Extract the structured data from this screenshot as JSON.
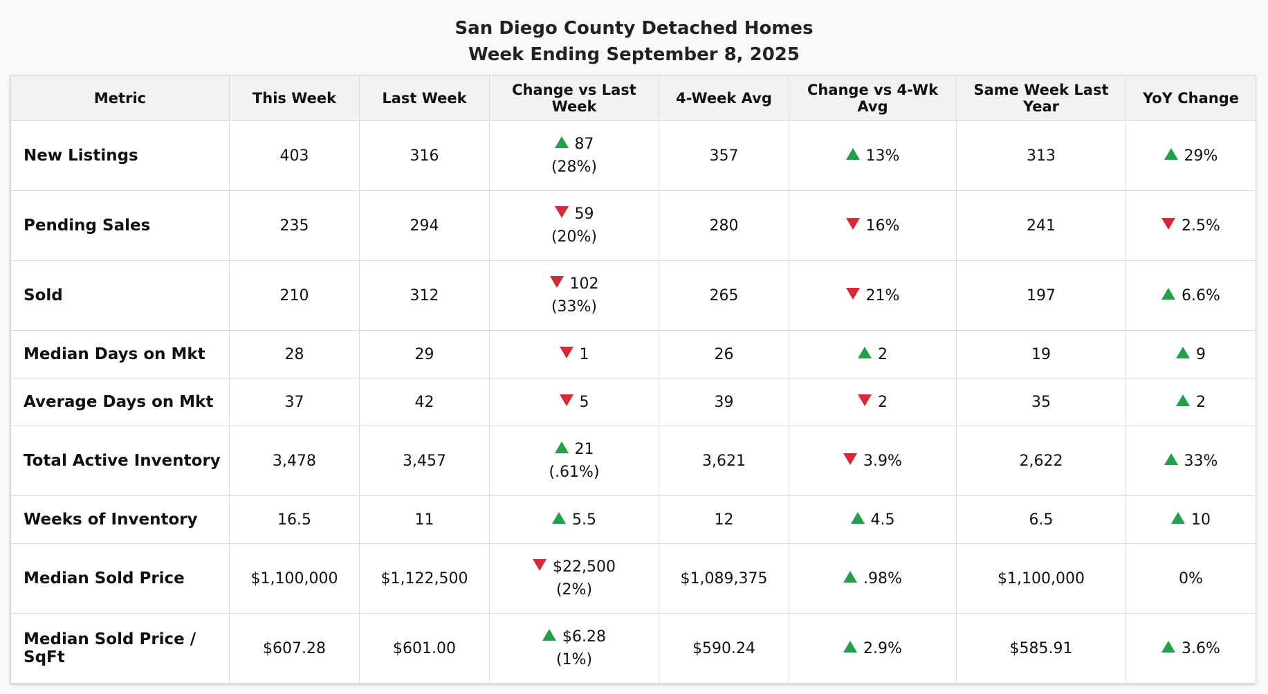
{
  "chart_data": {
    "type": "table",
    "title": "San Diego County Detached Homes",
    "subtitle": "Week Ending September 8, 2025",
    "columns": [
      "Metric",
      "This Week",
      "Last Week",
      "Change vs Last Week",
      "4-Week Avg",
      "Change vs 4-Wk Avg",
      "Same Week Last Year",
      "YoY Change"
    ],
    "colors": {
      "up": "#22a04a",
      "down": "#d8283a"
    },
    "rows": [
      {
        "metric": "New Listings",
        "this_week": "403",
        "last_week": "316",
        "chg_lw": {
          "dir": "up",
          "value": "87",
          "pct": "(28%)"
        },
        "avg4": "357",
        "chg_4wk": {
          "dir": "up",
          "value": "13%"
        },
        "last_year": "313",
        "yoy": {
          "dir": "up",
          "value": "29%"
        }
      },
      {
        "metric": "Pending Sales",
        "this_week": "235",
        "last_week": "294",
        "chg_lw": {
          "dir": "down",
          "value": "59",
          "pct": "(20%)"
        },
        "avg4": "280",
        "chg_4wk": {
          "dir": "down",
          "value": "16%"
        },
        "last_year": "241",
        "yoy": {
          "dir": "down",
          "value": "2.5%"
        }
      },
      {
        "metric": "Sold",
        "this_week": "210",
        "last_week": "312",
        "chg_lw": {
          "dir": "down",
          "value": "102",
          "pct": "(33%)"
        },
        "avg4": "265",
        "chg_4wk": {
          "dir": "down",
          "value": "21%"
        },
        "last_year": "197",
        "yoy": {
          "dir": "up",
          "value": "6.6%"
        }
      },
      {
        "metric": "Median Days on Mkt",
        "this_week": "28",
        "last_week": "29",
        "chg_lw": {
          "dir": "down",
          "value": "1",
          "pct": ""
        },
        "avg4": "26",
        "chg_4wk": {
          "dir": "up",
          "value": "2"
        },
        "last_year": "19",
        "yoy": {
          "dir": "up",
          "value": "9"
        }
      },
      {
        "metric": "Average Days on Mkt",
        "this_week": "37",
        "last_week": "42",
        "chg_lw": {
          "dir": "down",
          "value": "5",
          "pct": ""
        },
        "avg4": "39",
        "chg_4wk": {
          "dir": "down",
          "value": "2"
        },
        "last_year": "35",
        "yoy": {
          "dir": "up",
          "value": "2"
        }
      },
      {
        "metric": "Total Active Inventory",
        "this_week": "3,478",
        "last_week": "3,457",
        "chg_lw": {
          "dir": "up",
          "value": "21",
          "pct": "(.61%)"
        },
        "avg4": "3,621",
        "chg_4wk": {
          "dir": "down",
          "value": "3.9%"
        },
        "last_year": "2,622",
        "yoy": {
          "dir": "up",
          "value": "33%"
        }
      },
      {
        "metric": "Weeks of Inventory",
        "this_week": "16.5",
        "last_week": "11",
        "chg_lw": {
          "dir": "up",
          "value": "5.5",
          "pct": ""
        },
        "avg4": "12",
        "chg_4wk": {
          "dir": "up",
          "value": "4.5"
        },
        "last_year": "6.5",
        "yoy": {
          "dir": "up",
          "value": "10"
        }
      },
      {
        "metric": "Median Sold Price",
        "this_week": "$1,100,000",
        "last_week": "$1,122,500",
        "chg_lw": {
          "dir": "down",
          "value": "$22,500",
          "pct": "(2%)"
        },
        "avg4": "$1,089,375",
        "chg_4wk": {
          "dir": "up",
          "value": ".98%"
        },
        "last_year": "$1,100,000",
        "yoy": {
          "dir": "none",
          "value": "0%"
        }
      },
      {
        "metric": "Median Sold Price / SqFt",
        "this_week": "$607.28",
        "last_week": "$601.00",
        "chg_lw": {
          "dir": "up",
          "value": "$6.28",
          "pct": "(1%)"
        },
        "avg4": "$590.24",
        "chg_4wk": {
          "dir": "up",
          "value": "2.9%"
        },
        "last_year": "$585.91",
        "yoy": {
          "dir": "up",
          "value": "3.6%"
        }
      }
    ]
  }
}
